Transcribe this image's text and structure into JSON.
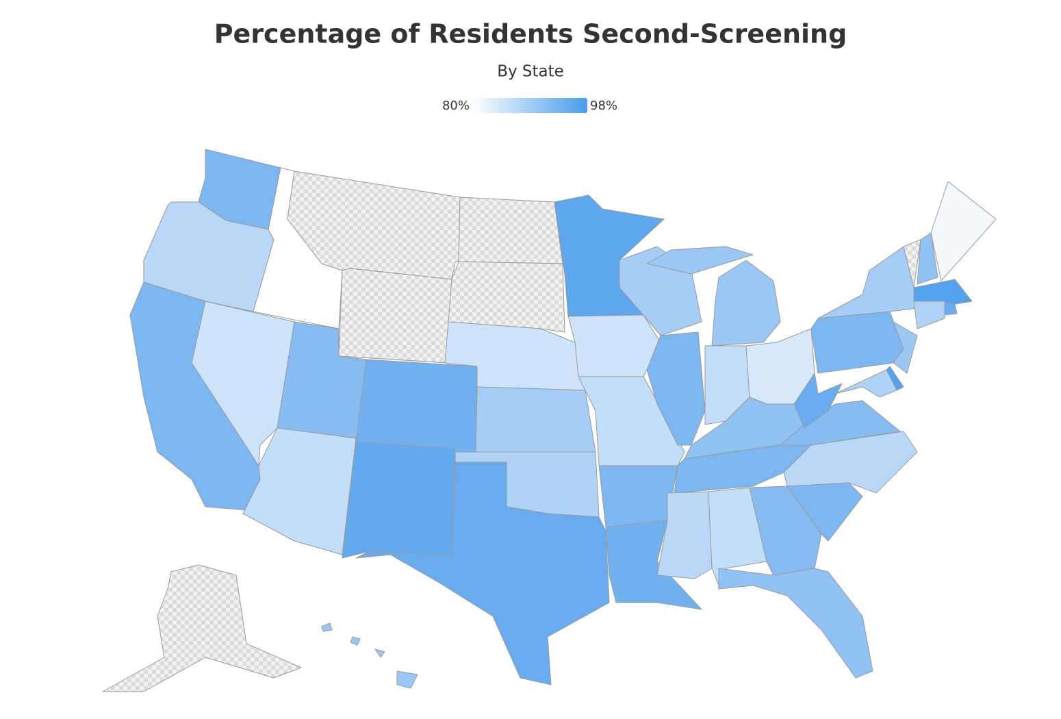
{
  "chart_data": {
    "type": "choropleth",
    "title": "Percentage of Residents Second-Screening",
    "subtitle": "By State",
    "values": [
      93,
      87,
      93,
      80,
      85,
      null,
      null,
      92,
      86,
      94,
      95.5,
      null,
      null,
      85,
      89,
      88,
      95,
      96,
      85,
      86,
      93,
      94,
      89,
      93,
      90,
      86,
      84,
      91,
      93,
      87,
      86,
      92,
      91,
      93,
      87,
      92,
      95,
      93,
      89,
      null,
      91,
      81,
      97,
      95,
      88,
      90,
      97,
      88,
      null,
      90
    ],
    "colors": [
      "#ffffff",
      "#4a9bec"
    ],
    "clim": [
      80,
      98
    ],
    "cticks": [
      {
        "value": 80,
        "label": "80%"
      },
      {
        "value": 98,
        "label": "98%"
      }
    ]
  }
}
